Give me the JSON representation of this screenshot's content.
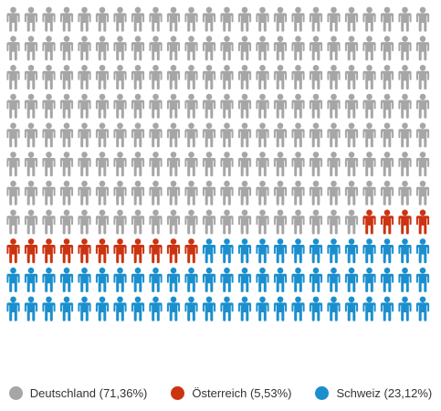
{
  "chart_data": {
    "type": "waffle",
    "icon": "person-icon",
    "total_icons": 264,
    "series": [
      {
        "name": "Deutschland",
        "label": "Deutschland (71,36%)",
        "percent": 71.36,
        "icons": 188,
        "color": "#a6a6a6"
      },
      {
        "name": "Österreich",
        "label": "Österreich (5,53%)",
        "percent": 5.53,
        "icons": 15,
        "color": "#cc3311"
      },
      {
        "name": "Schweiz",
        "label": "Schweiz (23,12%)",
        "percent": 23.12,
        "icons": 61,
        "color": "#1b8fce"
      }
    ],
    "legend_position": "bottom"
  }
}
